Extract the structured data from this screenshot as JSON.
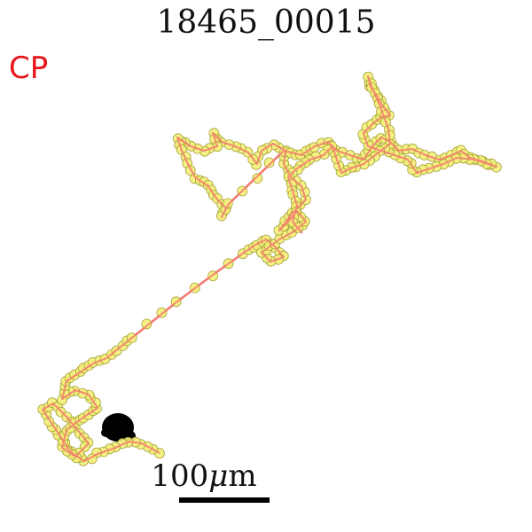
{
  "title": "18465_00015",
  "tag_label": "CP",
  "scale_bar": {
    "prefix": "100",
    "unit_mu": "μ",
    "unit_rest": "m"
  },
  "colors": {
    "track_line": "#f47a6e",
    "point_fill": "#f3f07a",
    "point_stroke": "#a8a23a",
    "blob": "#000000",
    "tag": "#e8141a",
    "scale_bar": "#000000"
  }
}
